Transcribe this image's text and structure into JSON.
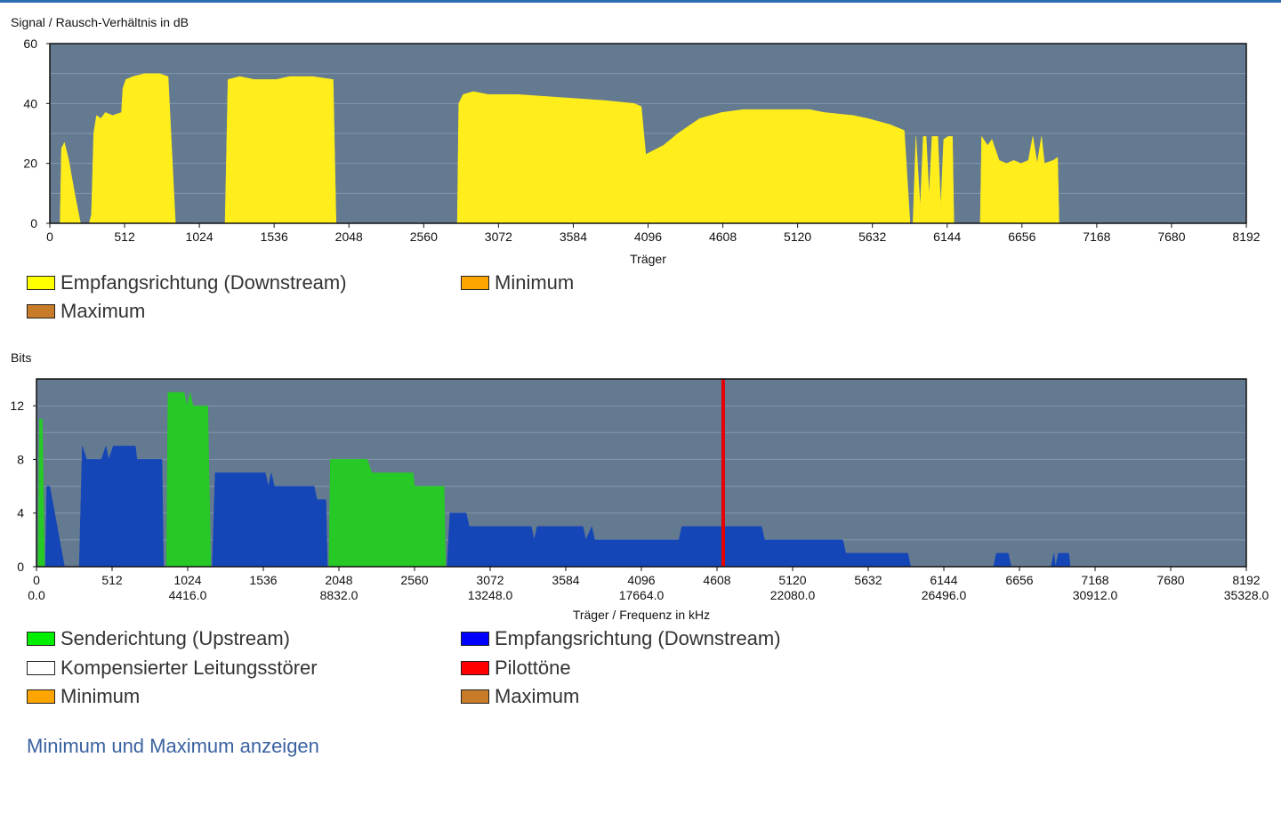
{
  "colors": {
    "plot_bg": "#647a91",
    "grid": "#8396ab",
    "snr_fill": "#ffed1c",
    "upstream": "#26c926",
    "downstream": "#1546b8",
    "pilot": "#e60000",
    "link": "#3a62a0"
  },
  "snr_chart": {
    "ylabel": "Signal / Rausch-Verhältnis in dB",
    "xlabel": "Träger",
    "legend": [
      {
        "label": "Empfangsrichtung (Downstream)",
        "color": "#ffff00"
      },
      {
        "label": "Minimum",
        "color": "#ffa500"
      },
      {
        "label": "Maximum",
        "color": "#c87b28"
      }
    ]
  },
  "bits_chart": {
    "ylabel": "Bits",
    "xlabel": "Träger / Frequenz in kHz",
    "legend": [
      {
        "label": "Senderichtung (Upstream)",
        "color": "#00ee00"
      },
      {
        "label": "Empfangsrichtung (Downstream)",
        "color": "#0000ff"
      },
      {
        "label": "Kompensierter Leitungsstörer",
        "color": "#ffffff"
      },
      {
        "label": "Pilottöne",
        "color": "#ff0000"
      },
      {
        "label": "Minimum",
        "color": "#ffa500"
      },
      {
        "label": "Maximum",
        "color": "#c87b28"
      }
    ]
  },
  "toggle_link": "Minimum und Maximum anzeigen",
  "chart_data": [
    {
      "type": "area",
      "ylabel": "Signal / Rausch-Verhältnis in dB",
      "xlabel": "Träger",
      "xlim": [
        0,
        8192
      ],
      "ylim": [
        0,
        60
      ],
      "x_ticks": [
        0,
        512,
        1024,
        1536,
        2048,
        2560,
        3072,
        3584,
        4096,
        4608,
        5120,
        5632,
        6144,
        6656,
        7168,
        7680,
        8192
      ],
      "y_ticks": [
        0,
        20,
        40,
        60
      ],
      "grid": true,
      "series": [
        {
          "name": "Empfangsrichtung (Downstream)",
          "points": [
            [
              70,
              0
            ],
            [
              80,
              25
            ],
            [
              100,
              27
            ],
            [
              130,
              21
            ],
            [
              170,
              10
            ],
            [
              210,
              0
            ],
            [
              270,
              0
            ],
            [
              285,
              3
            ],
            [
              300,
              30
            ],
            [
              320,
              36
            ],
            [
              350,
              35
            ],
            [
              380,
              37
            ],
            [
              430,
              36
            ],
            [
              490,
              37
            ],
            [
              500,
              45
            ],
            [
              520,
              48
            ],
            [
              570,
              49
            ],
            [
              650,
              50
            ],
            [
              750,
              50
            ],
            [
              810,
              49
            ],
            [
              860,
              0
            ],
            [
              1200,
              0
            ],
            [
              1220,
              48
            ],
            [
              1300,
              49
            ],
            [
              1400,
              48
            ],
            [
              1550,
              48
            ],
            [
              1640,
              49
            ],
            [
              1800,
              49
            ],
            [
              1940,
              48
            ],
            [
              1960,
              0
            ],
            [
              2790,
              0
            ],
            [
              2800,
              40
            ],
            [
              2830,
              43
            ],
            [
              2900,
              44
            ],
            [
              3000,
              43
            ],
            [
              3200,
              43
            ],
            [
              3500,
              42
            ],
            [
              3800,
              41
            ],
            [
              4000,
              40
            ],
            [
              4050,
              39
            ],
            [
              4080,
              23
            ],
            [
              4120,
              24
            ],
            [
              4200,
              26
            ],
            [
              4300,
              30
            ],
            [
              4450,
              35
            ],
            [
              4600,
              37
            ],
            [
              4750,
              38
            ],
            [
              4950,
              38
            ],
            [
              5200,
              38
            ],
            [
              5300,
              37
            ],
            [
              5500,
              36
            ],
            [
              5600,
              35
            ],
            [
              5750,
              33
            ],
            [
              5850,
              31
            ],
            [
              5890,
              0
            ],
            [
              5910,
              0
            ],
            [
              5930,
              29
            ],
            [
              5960,
              5
            ],
            [
              5980,
              29
            ],
            [
              6000,
              29
            ],
            [
              6020,
              9
            ],
            [
              6040,
              29
            ],
            [
              6080,
              29
            ],
            [
              6100,
              5
            ],
            [
              6120,
              28
            ],
            [
              6150,
              29
            ],
            [
              6180,
              29
            ],
            [
              6190,
              0
            ],
            [
              6370,
              0
            ],
            [
              6380,
              29
            ],
            [
              6420,
              26
            ],
            [
              6450,
              28
            ],
            [
              6500,
              21
            ],
            [
              6550,
              20
            ],
            [
              6600,
              21
            ],
            [
              6650,
              20
            ],
            [
              6700,
              21
            ],
            [
              6730,
              29
            ],
            [
              6760,
              20
            ],
            [
              6790,
              29
            ],
            [
              6810,
              20
            ],
            [
              6870,
              21
            ],
            [
              6900,
              22
            ],
            [
              6910,
              0
            ]
          ]
        }
      ]
    },
    {
      "type": "area",
      "ylabel": "Bits",
      "xlabel": "Träger / Frequenz in kHz",
      "xlim": [
        0,
        8192
      ],
      "ylim": [
        0,
        14
      ],
      "x_ticks": [
        0,
        512,
        1024,
        1536,
        2048,
        2560,
        3072,
        3584,
        4096,
        4608,
        5120,
        5632,
        6144,
        6656,
        7168,
        7680,
        8192
      ],
      "freq_ticks": [
        {
          "carrier": 0,
          "label": "0.0"
        },
        {
          "carrier": 1024,
          "label": "4416.0"
        },
        {
          "carrier": 2048,
          "label": "8832.0"
        },
        {
          "carrier": 3072,
          "label": "13248.0"
        },
        {
          "carrier": 4096,
          "label": "17664.0"
        },
        {
          "carrier": 5120,
          "label": "22080.0"
        },
        {
          "carrier": 6144,
          "label": "26496.0"
        },
        {
          "carrier": 7168,
          "label": "30912.0"
        },
        {
          "carrier": 8192,
          "label": "35328.0"
        }
      ],
      "y_ticks": [
        0,
        4,
        8,
        12
      ],
      "grid": true,
      "series": [
        {
          "name": "Senderichtung (Upstream)",
          "segments": [
            [
              [
                10,
                0
              ],
              [
                20,
                11
              ],
              [
                40,
                11
              ],
              [
                55,
                0
              ]
            ],
            [
              [
                880,
                0
              ],
              [
                890,
                13
              ],
              [
                1000,
                13
              ],
              [
                1020,
                12
              ],
              [
                1040,
                13
              ],
              [
                1060,
                12
              ],
              [
                1160,
                12
              ],
              [
                1180,
                0
              ]
            ],
            [
              [
                1980,
                0
              ],
              [
                1990,
                8
              ],
              [
                2240,
                8
              ],
              [
                2270,
                7
              ],
              [
                2550,
                7
              ],
              [
                2560,
                6
              ],
              [
                2760,
                6
              ],
              [
                2770,
                0
              ]
            ]
          ]
        },
        {
          "name": "Empfangsrichtung (Downstream)",
          "segments": [
            [
              [
                60,
                0
              ],
              [
                70,
                6
              ],
              [
                90,
                6
              ],
              [
                190,
                0
              ]
            ],
            [
              [
                290,
                0
              ],
              [
                310,
                9
              ],
              [
                340,
                8
              ],
              [
                440,
                8
              ],
              [
                470,
                9
              ],
              [
                490,
                8
              ],
              [
                520,
                9
              ],
              [
                670,
                9
              ],
              [
                680,
                8
              ],
              [
                850,
                8
              ],
              [
                860,
                0
              ]
            ],
            [
              [
                1190,
                0
              ],
              [
                1210,
                7
              ],
              [
                1550,
                7
              ],
              [
                1570,
                6
              ],
              [
                1590,
                7
              ],
              [
                1610,
                6
              ],
              [
                1880,
                6
              ],
              [
                1900,
                5
              ],
              [
                1960,
                5
              ],
              [
                1970,
                0
              ]
            ],
            [
              [
                2780,
                0
              ],
              [
                2800,
                4
              ],
              [
                2910,
                4
              ],
              [
                2930,
                3
              ],
              [
                3350,
                3
              ],
              [
                3370,
                2
              ],
              [
                3390,
                3
              ],
              [
                3700,
                3
              ],
              [
                3720,
                2
              ],
              [
                3760,
                3
              ],
              [
                3780,
                2
              ],
              [
                4350,
                2
              ],
              [
                4370,
                3
              ],
              [
                4910,
                3
              ],
              [
                4930,
                2
              ],
              [
                5460,
                2
              ],
              [
                5480,
                1
              ],
              [
                5900,
                1
              ],
              [
                5920,
                0
              ]
            ],
            [
              [
                6480,
                0
              ],
              [
                6500,
                1
              ],
              [
                6580,
                1
              ],
              [
                6600,
                0
              ]
            ],
            [
              [
                6870,
                0
              ],
              [
                6890,
                1
              ],
              [
                6900,
                0
              ],
              [
                6920,
                1
              ],
              [
                6990,
                1
              ],
              [
                7000,
                0
              ]
            ]
          ]
        },
        {
          "name": "Pilottöne",
          "lines": [
            4650
          ]
        }
      ]
    }
  ]
}
